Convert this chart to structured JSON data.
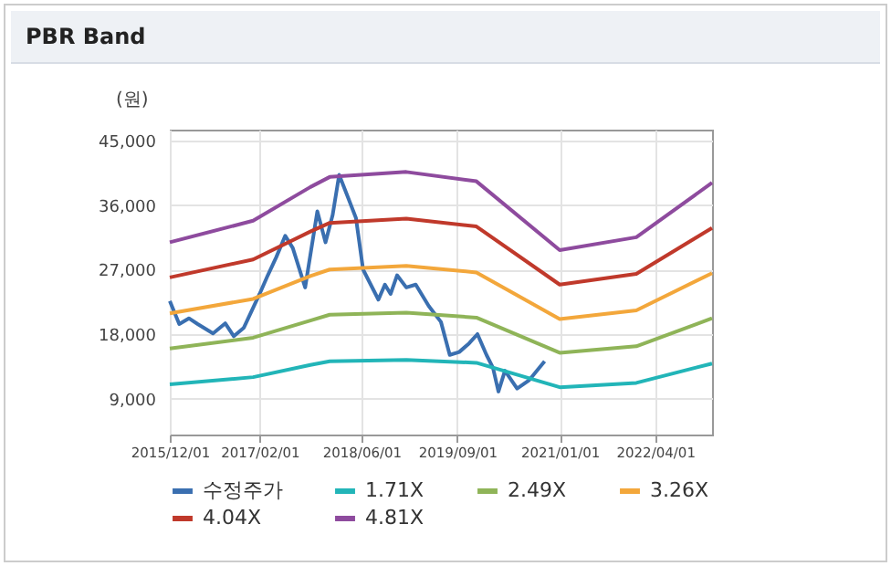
{
  "chart_data": {
    "type": "line",
    "title": "PBR Band",
    "ylabel": "(원)",
    "xlim": [
      "2015-12-01",
      "2022-12-28"
    ],
    "ylim": [
      4000,
      46500
    ],
    "xticks": [
      {
        "value": "2015-12-01",
        "label": "2015/12/01"
      },
      {
        "value": "2017-02-01",
        "label": "2017/02/01"
      },
      {
        "value": "2018-06-01",
        "label": "2018/06/01"
      },
      {
        "value": "2019-09-01",
        "label": "2019/09/01"
      },
      {
        "value": "2021-01-01",
        "label": "2021/01/01"
      },
      {
        "value": "2022-04-01",
        "label": "2022/04/01"
      }
    ],
    "yticks": [
      {
        "value": 9000,
        "label": "9,000"
      },
      {
        "value": 18000,
        "label": "18,000"
      },
      {
        "value": 27000,
        "label": "27,000"
      },
      {
        "value": 36000,
        "label": "36,000"
      },
      {
        "value": 45000,
        "label": "45,000"
      }
    ],
    "grid": true,
    "legend": "bottom",
    "series": [
      {
        "name": "수정주가",
        "color": "#3a6fb0",
        "x": [
          "2015-12-01",
          "2016-01-15",
          "2016-03-01",
          "2016-04-12",
          "2016-06-24",
          "2016-08-21",
          "2016-10-01",
          "2016-11-18",
          "2017-02-01",
          "2017-03-12",
          "2017-04-21",
          "2017-06-03",
          "2017-07-09",
          "2017-09-06",
          "2017-11-03",
          "2017-12-12",
          "2018-01-15",
          "2018-02-15",
          "2018-03-27",
          "2018-05-06",
          "2018-06-09",
          "2018-08-21",
          "2018-09-21",
          "2018-10-18",
          "2018-11-18",
          "2019-01-01",
          "2019-02-15",
          "2019-04-18",
          "2019-06-15",
          "2019-07-27",
          "2019-09-10",
          "2019-10-27",
          "2019-12-06",
          "2020-01-18",
          "2020-02-18",
          "2020-03-15",
          "2020-04-15",
          "2020-06-12",
          "2020-08-09",
          "2020-10-21"
        ],
        "values": [
          22600,
          19400,
          20200,
          19400,
          18100,
          19500,
          17700,
          18900,
          23600,
          26200,
          28700,
          31700,
          30000,
          24500,
          35100,
          30800,
          34600,
          40200,
          37200,
          34200,
          27000,
          22800,
          24900,
          23600,
          26200,
          24500,
          24900,
          21900,
          19700,
          15100,
          15500,
          16700,
          18000,
          15100,
          13300,
          10000,
          12900,
          10400,
          11600,
          14200
        ]
      },
      {
        "name": "1.71X",
        "color": "#22b5b8",
        "x": [
          "2015-12-01",
          "2017-01-01",
          "2017-10-01",
          "2018-01-01",
          "2019-01-01",
          "2019-12-01",
          "2021-01-01",
          "2022-01-01",
          "2022-12-28"
        ],
        "values": [
          11000,
          12000,
          13700,
          14200,
          14400,
          14000,
          10600,
          11200,
          13900
        ]
      },
      {
        "name": "2.49X",
        "color": "#8fb458",
        "x": [
          "2015-12-01",
          "2017-01-01",
          "2017-10-01",
          "2018-01-01",
          "2019-01-01",
          "2019-12-01",
          "2021-01-01",
          "2022-01-01",
          "2022-12-28"
        ],
        "values": [
          16000,
          17500,
          19900,
          20700,
          21000,
          20300,
          15400,
          16300,
          20200
        ]
      },
      {
        "name": "3.26X",
        "color": "#f3a73b",
        "x": [
          "2015-12-01",
          "2017-01-01",
          "2017-10-01",
          "2018-01-01",
          "2019-01-01",
          "2019-12-01",
          "2021-01-01",
          "2022-01-01",
          "2022-12-28"
        ],
        "values": [
          20900,
          22900,
          26100,
          27000,
          27500,
          26600,
          20100,
          21300,
          26500
        ]
      },
      {
        "name": "4.04X",
        "color": "#c0392b",
        "x": [
          "2015-12-01",
          "2017-01-01",
          "2017-10-01",
          "2018-01-01",
          "2019-01-01",
          "2019-12-01",
          "2021-01-01",
          "2022-01-01",
          "2022-12-28"
        ],
        "values": [
          25900,
          28400,
          32300,
          33500,
          34100,
          33000,
          24900,
          26400,
          32800
        ]
      },
      {
        "name": "4.81X",
        "color": "#8e4b9e",
        "x": [
          "2015-12-01",
          "2017-01-01",
          "2017-10-01",
          "2018-01-01",
          "2019-01-01",
          "2019-12-01",
          "2021-01-01",
          "2022-01-01",
          "2022-12-28"
        ],
        "values": [
          30800,
          33800,
          38500,
          39900,
          40600,
          39300,
          29700,
          31500,
          39100
        ]
      }
    ]
  }
}
